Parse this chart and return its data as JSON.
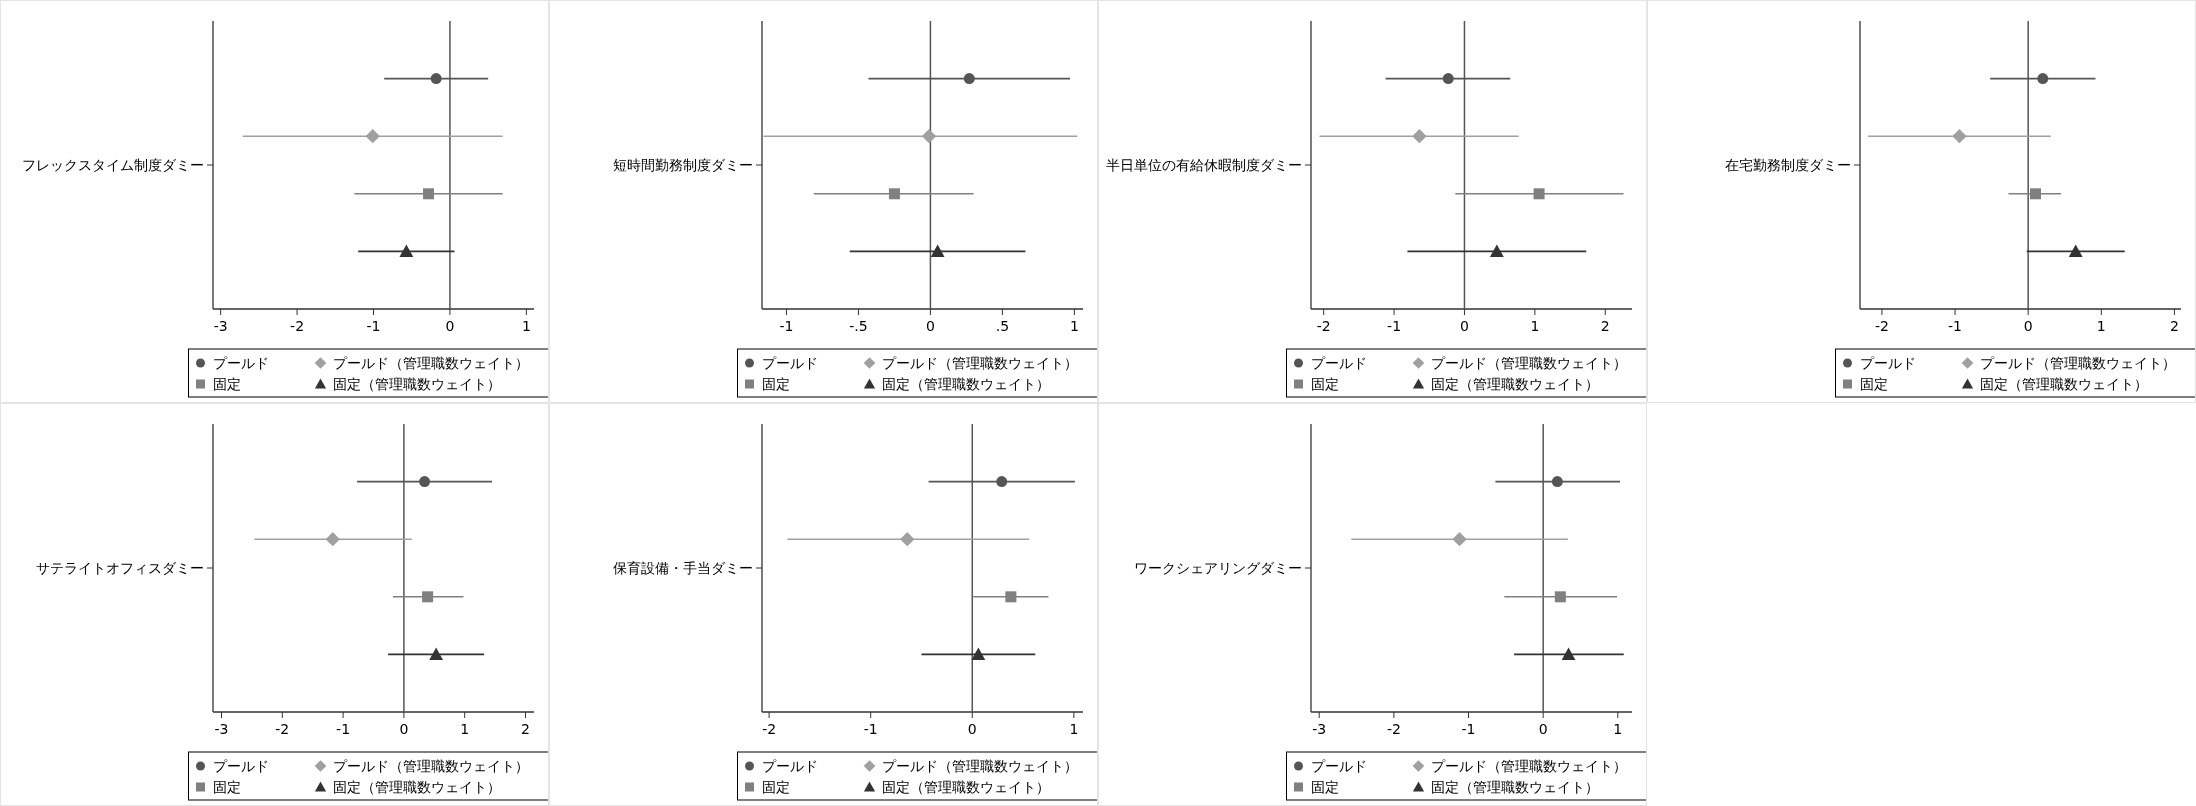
{
  "chart_data": [
    {
      "type": "scatter",
      "orientation": "horizontal",
      "ylabel": "フレックスタイム制度ダミー",
      "categories": [
        null,
        null,
        null,
        null
      ],
      "xlim": [
        -3.1,
        1.1
      ],
      "xticks": [
        -3,
        -2,
        -1,
        0,
        1
      ],
      "ref_lines": [
        {
          "axis": "x",
          "value": 0
        }
      ],
      "legend": "bottom",
      "series": [
        {
          "name": "プールド",
          "color": "#555555",
          "marker": "circle",
          "values": [
            -0.18,
            null,
            null,
            null
          ],
          "errors": [
            [
              -0.86,
              0.5
            ],
            null,
            null,
            null
          ]
        },
        {
          "name": "プールド（管理職数ウェイト）",
          "color": "#a0a0a0",
          "marker": "diamond",
          "values": [
            null,
            -1.01,
            null,
            null
          ],
          "errors": [
            null,
            [
              -2.71,
              0.69
            ],
            null,
            null
          ]
        },
        {
          "name": "固定",
          "color": "#808080",
          "marker": "square",
          "values": [
            null,
            null,
            -0.28,
            null
          ],
          "errors": [
            null,
            null,
            [
              -1.25,
              0.69
            ],
            null
          ]
        },
        {
          "name": "固定（管理職数ウェイト）",
          "color": "#333333",
          "marker": "triangle",
          "values": [
            null,
            null,
            null,
            -0.57
          ],
          "errors": [
            null,
            null,
            null,
            [
              -1.2,
              0.06
            ]
          ]
        }
      ]
    },
    {
      "type": "scatter",
      "orientation": "horizontal",
      "ylabel": "短時間勤務制度ダミー",
      "categories": [
        null,
        null,
        null,
        null
      ],
      "xlim": [
        -1.17,
        1.06
      ],
      "xticks": [
        {
          "value": -1,
          "label": "-1"
        },
        {
          "value": -0.5,
          "label": "-.5"
        },
        0,
        {
          "value": 0.5,
          "label": ".5"
        },
        1
      ],
      "ref_lines": [
        {
          "axis": "x",
          "value": 0
        }
      ],
      "legend": "bottom",
      "series": [
        {
          "name": "プールド",
          "color": "#555555",
          "marker": "circle",
          "values": [
            0.27,
            null,
            null,
            null
          ],
          "errors": [
            [
              -0.43,
              0.97
            ],
            null,
            null,
            null
          ]
        },
        {
          "name": "プールド（管理職数ウェイト）",
          "color": "#a0a0a0",
          "marker": "diamond",
          "values": [
            null,
            -0.01,
            null,
            null
          ],
          "errors": [
            null,
            [
              -1.16,
              1.02
            ],
            null,
            null
          ]
        },
        {
          "name": "固定",
          "color": "#808080",
          "marker": "square",
          "values": [
            null,
            null,
            -0.25,
            null
          ],
          "errors": [
            null,
            null,
            [
              -0.81,
              0.3
            ],
            null
          ]
        },
        {
          "name": "固定（管理職数ウェイト）",
          "color": "#333333",
          "marker": "triangle",
          "values": [
            null,
            null,
            null,
            0.05
          ],
          "errors": [
            null,
            null,
            null,
            [
              -0.56,
              0.66
            ]
          ]
        }
      ]
    },
    {
      "type": "scatter",
      "orientation": "horizontal",
      "ylabel": "半日単位の有給休暇制度ダミー",
      "categories": [
        null,
        null,
        null,
        null
      ],
      "xlim": [
        -2.18,
        2.38
      ],
      "xticks": [
        -2,
        -1,
        0,
        1,
        2
      ],
      "ref_lines": [
        {
          "axis": "x",
          "value": 0
        }
      ],
      "legend": "bottom",
      "series": [
        {
          "name": "プールド",
          "color": "#555555",
          "marker": "circle",
          "values": [
            -0.23,
            null,
            null,
            null
          ],
          "errors": [
            [
              -1.12,
              0.65
            ],
            null,
            null,
            null
          ]
        },
        {
          "name": "プールド（管理職数ウェイト）",
          "color": "#a0a0a0",
          "marker": "diamond",
          "values": [
            null,
            -0.64,
            null,
            null
          ],
          "errors": [
            null,
            [
              -2.06,
              0.77
            ],
            null,
            null
          ]
        },
        {
          "name": "固定",
          "color": "#808080",
          "marker": "square",
          "values": [
            null,
            null,
            1.06,
            null
          ],
          "errors": [
            null,
            null,
            [
              -0.13,
              2.26
            ],
            null
          ]
        },
        {
          "name": "固定（管理職数ウェイト）",
          "color": "#333333",
          "marker": "triangle",
          "values": [
            null,
            null,
            null,
            0.46
          ],
          "errors": [
            null,
            null,
            null,
            [
              -0.81,
              1.73
            ]
          ]
        }
      ]
    },
    {
      "type": "scatter",
      "orientation": "horizontal",
      "ylabel": "在宅勤務制度ダミー",
      "categories": [
        null,
        null,
        null,
        null
      ],
      "xlim": [
        -2.3,
        2.09
      ],
      "xticks": [
        -2,
        -1,
        0,
        1,
        2
      ],
      "ref_lines": [
        {
          "axis": "x",
          "value": 0
        }
      ],
      "legend": "bottom",
      "series": [
        {
          "name": "プールド",
          "color": "#555555",
          "marker": "circle",
          "values": [
            0.2,
            null,
            null,
            null
          ],
          "errors": [
            [
              -0.52,
              0.92
            ],
            null,
            null,
            null
          ]
        },
        {
          "name": "プールド（管理職数ウェイト）",
          "color": "#a0a0a0",
          "marker": "diamond",
          "values": [
            null,
            -0.94,
            null,
            null
          ],
          "errors": [
            null,
            [
              -2.19,
              0.31
            ],
            null,
            null
          ]
        },
        {
          "name": "固定",
          "color": "#808080",
          "marker": "square",
          "values": [
            null,
            null,
            0.1,
            null
          ],
          "errors": [
            null,
            null,
            [
              -0.27,
              0.45
            ],
            null
          ]
        },
        {
          "name": "固定（管理職数ウェイト）",
          "color": "#333333",
          "marker": "triangle",
          "values": [
            null,
            null,
            null,
            0.65
          ],
          "errors": [
            null,
            null,
            null,
            [
              -0.02,
              1.32
            ]
          ]
        }
      ]
    },
    {
      "type": "scatter",
      "orientation": "horizontal",
      "ylabel": "サテライトオフィスダミー",
      "categories": [
        null,
        null,
        null,
        null
      ],
      "xlim": [
        -3.14,
        2.14
      ],
      "xticks": [
        -3,
        -2,
        -1,
        0,
        1,
        2
      ],
      "ref_lines": [
        {
          "axis": "x",
          "value": 0
        }
      ],
      "legend": "bottom",
      "series": [
        {
          "name": "プールド",
          "color": "#555555",
          "marker": "circle",
          "values": [
            0.34,
            null,
            null,
            null
          ],
          "errors": [
            [
              -0.77,
              1.45
            ],
            null,
            null,
            null
          ]
        },
        {
          "name": "プールド（管理職数ウェイト）",
          "color": "#a0a0a0",
          "marker": "diamond",
          "values": [
            null,
            -1.17,
            null,
            null
          ],
          "errors": [
            null,
            [
              -2.46,
              0.13
            ],
            null,
            null
          ]
        },
        {
          "name": "固定",
          "color": "#808080",
          "marker": "square",
          "values": [
            null,
            null,
            0.39,
            null
          ],
          "errors": [
            null,
            null,
            [
              -0.18,
              0.98
            ],
            null
          ]
        },
        {
          "name": "固定（管理職数ウェイト）",
          "color": "#333333",
          "marker": "triangle",
          "values": [
            null,
            null,
            null,
            0.53
          ],
          "errors": [
            null,
            null,
            null,
            [
              -0.26,
              1.32
            ]
          ]
        }
      ]
    },
    {
      "type": "scatter",
      "orientation": "horizontal",
      "ylabel": "保育設備・手当ダミー",
      "categories": [
        null,
        null,
        null,
        null
      ],
      "xlim": [
        -2.07,
        1.09
      ],
      "xticks": [
        -2,
        -1,
        0,
        1
      ],
      "ref_lines": [
        {
          "axis": "x",
          "value": 0
        }
      ],
      "legend": "bottom",
      "series": [
        {
          "name": "プールド",
          "color": "#555555",
          "marker": "circle",
          "values": [
            0.29,
            null,
            null,
            null
          ],
          "errors": [
            [
              -0.43,
              1.01
            ],
            null,
            null,
            null
          ]
        },
        {
          "name": "プールド（管理職数ウェイト）",
          "color": "#a0a0a0",
          "marker": "diamond",
          "values": [
            null,
            -0.64,
            null,
            null
          ],
          "errors": [
            null,
            [
              -1.82,
              0.56
            ],
            null,
            null
          ]
        },
        {
          "name": "固定",
          "color": "#808080",
          "marker": "square",
          "values": [
            null,
            null,
            0.38,
            null
          ],
          "errors": [
            null,
            null,
            [
              0.01,
              0.75
            ],
            null
          ]
        },
        {
          "name": "固定（管理職数ウェイト）",
          "color": "#333333",
          "marker": "triangle",
          "values": [
            null,
            null,
            null,
            0.06
          ],
          "errors": [
            null,
            null,
            null,
            [
              -0.5,
              0.62
            ]
          ]
        }
      ]
    },
    {
      "type": "scatter",
      "orientation": "horizontal",
      "ylabel": "ワークシェアリングダミー",
      "categories": [
        null,
        null,
        null,
        null
      ],
      "xlim": [
        -3.11,
        1.19
      ],
      "xticks": [
        -3,
        -2,
        -1,
        0,
        1
      ],
      "ref_lines": [
        {
          "axis": "x",
          "value": 0
        }
      ],
      "legend": "bottom",
      "series": [
        {
          "name": "プールド",
          "color": "#555555",
          "marker": "circle",
          "values": [
            0.19,
            null,
            null,
            null
          ],
          "errors": [
            [
              -0.64,
              1.03
            ],
            null,
            null,
            null
          ]
        },
        {
          "name": "プールド（管理職数ウェイト）",
          "color": "#a0a0a0",
          "marker": "diamond",
          "values": [
            null,
            -1.12,
            null,
            null
          ],
          "errors": [
            null,
            [
              -2.57,
              0.33
            ],
            null,
            null
          ]
        },
        {
          "name": "固定",
          "color": "#808080",
          "marker": "square",
          "values": [
            null,
            null,
            0.23,
            null
          ],
          "errors": [
            null,
            null,
            [
              -0.52,
              0.99
            ],
            null
          ]
        },
        {
          "name": "固定（管理職数ウェイト）",
          "color": "#333333",
          "marker": "triangle",
          "values": [
            null,
            null,
            null,
            0.34
          ],
          "errors": [
            null,
            null,
            null,
            [
              -0.39,
              1.08
            ]
          ]
        }
      ]
    }
  ]
}
